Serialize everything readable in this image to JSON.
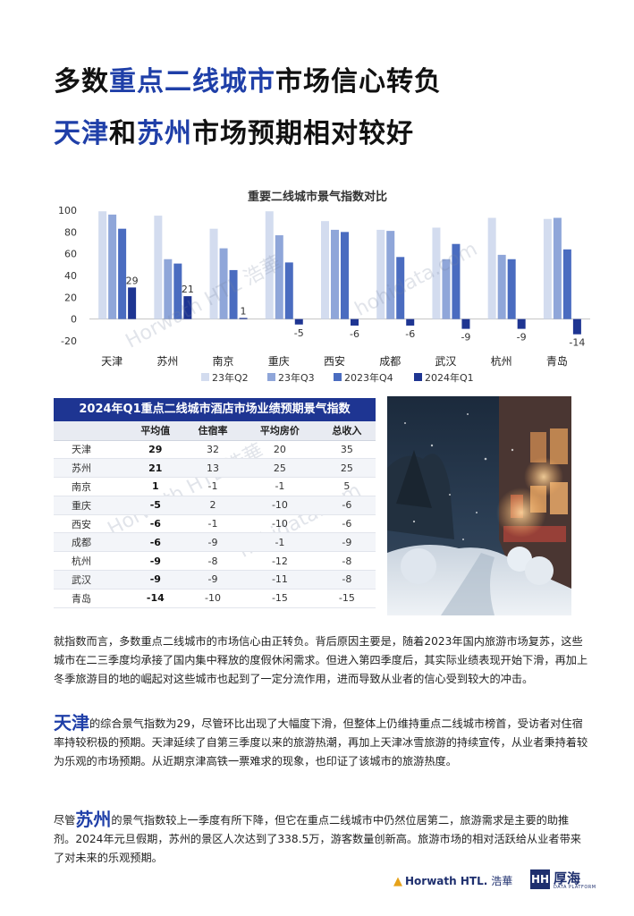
{
  "title": {
    "line1_pre": "多数",
    "line1_hl": "重点二线城市",
    "line1_post": "市场信心转负",
    "line2_hl1": "天津",
    "line2_mid": "和",
    "line2_hl2": "苏州",
    "line2_post": "市场预期相对较好"
  },
  "chart_data": {
    "type": "bar",
    "title": "重要二线城市景气指数对比",
    "categories": [
      "天津",
      "苏州",
      "南京",
      "重庆",
      "西安",
      "成都",
      "武汉",
      "杭州",
      "青岛"
    ],
    "ylim": [
      -20,
      100
    ],
    "yticks": [
      100,
      80,
      60,
      40,
      20,
      0,
      -20
    ],
    "legend_position": "bottom",
    "series": [
      {
        "name": "23年Q2",
        "color": "#d3dcef",
        "values": [
          99,
          95,
          83,
          99,
          90,
          82,
          84,
          93,
          92
        ]
      },
      {
        "name": "23年Q3",
        "color": "#8fa6d9",
        "values": [
          96,
          55,
          65,
          77,
          82,
          81,
          55,
          59,
          93
        ]
      },
      {
        "name": "2023年Q4",
        "color": "#4a6cc0",
        "values": [
          83,
          51,
          45,
          52,
          80,
          57,
          69,
          55,
          64
        ]
      },
      {
        "name": "2024年Q1",
        "color": "#1e3592",
        "values": [
          29,
          21,
          1,
          -5,
          -6,
          -6,
          -9,
          -9,
          -14
        ]
      }
    ],
    "data_labels": [
      "29",
      "21",
      "1",
      "-5",
      "-6",
      "-6",
      "-9",
      "-9",
      "-14"
    ]
  },
  "table": {
    "title": "2024年Q1重点二线城市酒店市场业绩预期景气指数",
    "headers": [
      "",
      "平均值",
      "住宿率",
      "平均房价",
      "总收入"
    ],
    "rows": [
      [
        "天津",
        "29",
        "32",
        "20",
        "35"
      ],
      [
        "苏州",
        "21",
        "13",
        "25",
        "25"
      ],
      [
        "南京",
        "1",
        "-1",
        "-1",
        "5"
      ],
      [
        "重庆",
        "-5",
        "2",
        "-10",
        "-6"
      ],
      [
        "西安",
        "-6",
        "-1",
        "-10",
        "-6"
      ],
      [
        "成都",
        "-6",
        "-9",
        "-1",
        "-9"
      ],
      [
        "杭州",
        "-9",
        "-8",
        "-12",
        "-8"
      ],
      [
        "武汉",
        "-9",
        "-9",
        "-11",
        "-8"
      ],
      [
        "青岛",
        "-14",
        "-10",
        "-15",
        "-15"
      ]
    ]
  },
  "paragraphs": {
    "p1": "就指数而言，多数重点二线城市的市场信心由正转负。背后原因主要是，随着2023年国内旅游市场复苏，这些城市在二三季度均承接了国内集中释放的度假休闲需求。但进入第四季度后，其实际业绩表现开始下滑，再加上冬季旅游目的地的崛起对这些城市也起到了一定分流作用，进而导致从业者的信心受到较大的冲击。",
    "p2_lead": "天津",
    "p2": "的综合景气指数为29，尽管环比出现了大幅度下滑，但整体上仍维持重点二线城市榜首，受访者对住宿率持较积极的预期。天津延续了自第三季度以来的旅游热潮，再加上天津冰雪旅游的持续宣传，从业者秉持着较为乐观的市场预期。从近期京津高铁一票难求的现象，也印证了该城市的旅游热度。",
    "p3_pre": "尽管",
    "p3_lead": "苏州",
    "p3": "的景气指数较上一季度有所下降，但它在重点二线城市中仍然位居第二，旅游需求是主要的助推剂。2024年元旦假期，苏州的景区人次达到了338.5万，游客数量创新高。旅游市场的相对活跃给从业者带来了对未来的乐观预期。"
  },
  "watermark": {
    "w1": "Horwath HTL 浩華",
    "w2": "hohidata.com"
  },
  "footer": {
    "horwath": "Horwath HTL.",
    "horwath_cn": "浩華",
    "houhai_box": "HH",
    "houhai": "厚海",
    "houhai_sub": "DATA PLATFORM"
  },
  "colors": {
    "accent": "#1f3fa8",
    "table_header": "#1e3592"
  }
}
